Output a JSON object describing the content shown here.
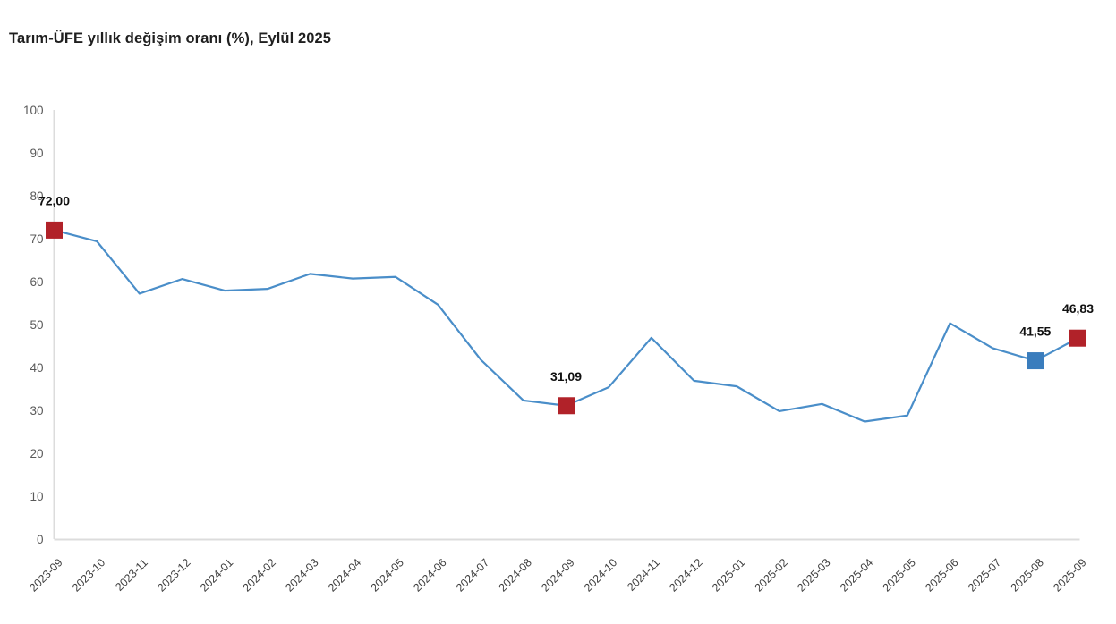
{
  "page": {
    "title": "Tarım-ÜFE yıllık değişim oranı (%), Eylül 2025"
  },
  "chart_data": {
    "type": "line",
    "title": "Tarım-ÜFE yıllık değişim oranı (%), Eylül 2025",
    "xlabel": "",
    "ylabel": "",
    "ylim": [
      0,
      100
    ],
    "ytick_step": 10,
    "grid": false,
    "legend": "none",
    "categories": [
      "2023-09",
      "2023-10",
      "2023-11",
      "2023-12",
      "2024-01",
      "2024-02",
      "2024-03",
      "2024-04",
      "2024-05",
      "2024-06",
      "2024-07",
      "2024-08",
      "2024-09",
      "2024-10",
      "2024-11",
      "2024-12",
      "2025-01",
      "2025-02",
      "2025-03",
      "2025-04",
      "2025-05",
      "2025-06",
      "2025-07",
      "2025-08",
      "2025-09"
    ],
    "values": [
      72.0,
      69.4,
      57.2,
      60.6,
      57.9,
      58.3,
      61.8,
      60.7,
      61.1,
      54.6,
      41.8,
      32.3,
      31.09,
      35.4,
      46.9,
      36.9,
      35.6,
      29.8,
      31.5,
      27.4,
      28.8,
      50.3,
      44.5,
      41.55,
      46.83
    ],
    "annotations": [
      {
        "x": "2023-09",
        "label": "72,00",
        "marker": "square",
        "marker_color": "#b12229"
      },
      {
        "x": "2024-09",
        "label": "31,09",
        "marker": "square",
        "marker_color": "#b12229"
      },
      {
        "x": "2025-08",
        "label": "41,55",
        "marker": "square",
        "marker_color": "#3a7dbd"
      },
      {
        "x": "2025-09",
        "label": "46,83",
        "marker": "square",
        "marker_color": "#b12229"
      }
    ],
    "colors": {
      "line": "#4a8ec9",
      "axis": "#dcdcdc",
      "ytick_text": "#595959",
      "xtick_text": "#3f3f3f",
      "data_label_text": "#111111",
      "title_text": "#1f1f1f",
      "background": "#ffffff"
    }
  }
}
